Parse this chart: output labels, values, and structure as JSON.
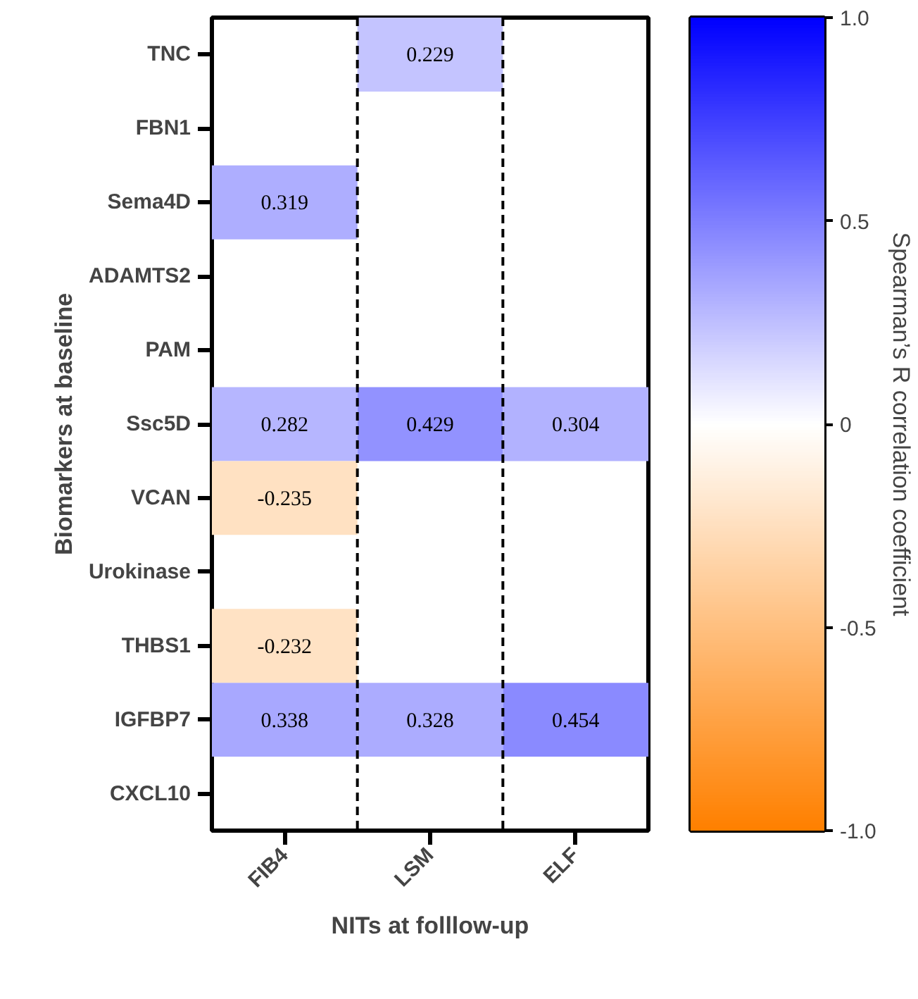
{
  "chart_data": {
    "type": "heatmap",
    "xlabel": "NITs at folllow-up",
    "ylabel": "Biomarkers at baseline",
    "clabel": "Spearman’s R correlation coefficient",
    "categories": [
      "FIB4",
      "LSM",
      "ELF"
    ],
    "y_categories": [
      "TNC",
      "FBN1",
      "Sema4D",
      "ADAMTS2",
      "PAM",
      "Ssc5D",
      "VCAN",
      "Urokinase",
      "THBS1",
      "IGFBP7",
      "CXCL10"
    ],
    "cells": [
      [
        null,
        0.229,
        null
      ],
      [
        null,
        null,
        null
      ],
      [
        0.319,
        null,
        null
      ],
      [
        null,
        null,
        null
      ],
      [
        null,
        null,
        null
      ],
      [
        0.282,
        0.429,
        0.304
      ],
      [
        -0.235,
        null,
        null
      ],
      [
        null,
        null,
        null
      ],
      [
        -0.232,
        null,
        null
      ],
      [
        0.338,
        0.328,
        0.454
      ],
      [
        null,
        null,
        null
      ]
    ],
    "clim": [
      -1.0,
      1.0
    ],
    "cticks": [
      {
        "value": -1.0,
        "label": "-1.0"
      },
      {
        "value": -0.5,
        "label": "-0.5"
      },
      0,
      {
        "value": 0.5,
        "label": "0.5"
      },
      {
        "value": 1.0,
        "label": "1.0"
      }
    ],
    "data_labels": true,
    "grid": "x"
  }
}
